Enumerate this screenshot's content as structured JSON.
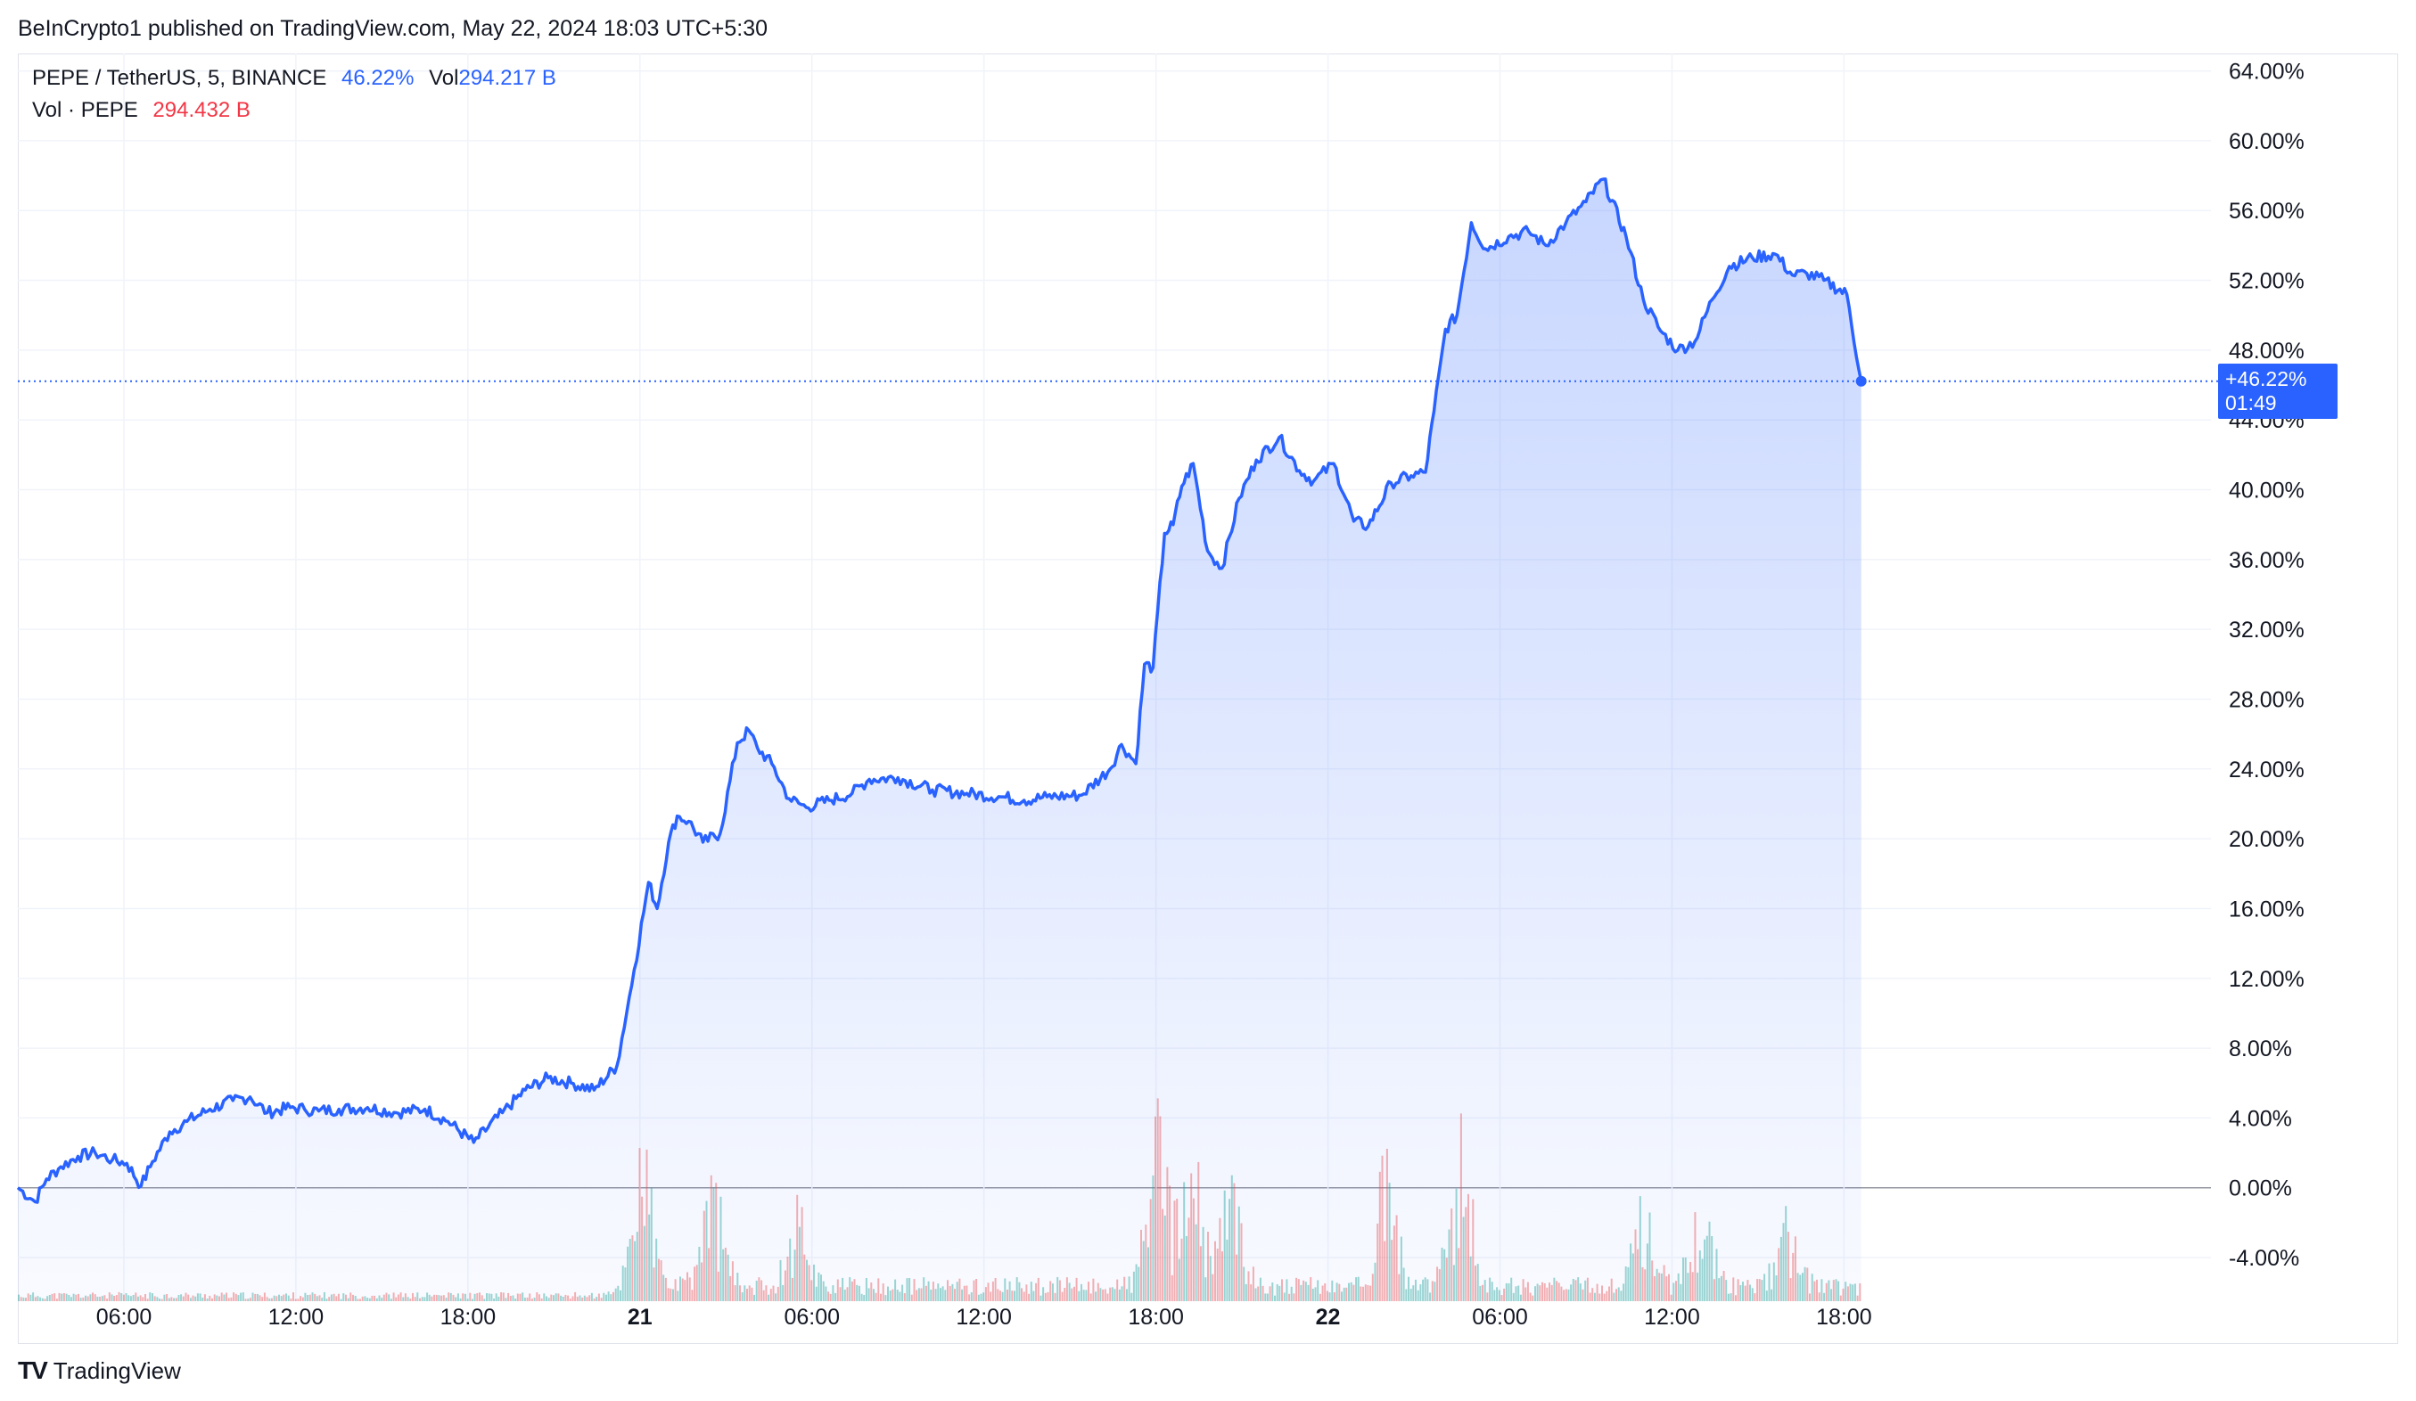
{
  "header": {
    "published_line": "BeInCrypto1 published on TradingView.com, May 22, 2024 18:03 UTC+5:30"
  },
  "legend": {
    "symbol": "PEPE / TetherUS, 5, BINANCE",
    "change": "46.22%",
    "vol_label": "Vol",
    "vol_value": "294.217 B",
    "vol_row_label": "Vol · PEPE",
    "vol_row_value": "294.432 B"
  },
  "price_tag": {
    "value": "+46.22%",
    "countdown": "01:49"
  },
  "brand": {
    "logo": "TV",
    "name": "TradingView"
  },
  "colors": {
    "line": "#2962ff",
    "area_top": "#2962ff",
    "volume_up": "#26a69a",
    "volume_down": "#ef5350",
    "grid": "#f0f3fa",
    "zero_line": "#9598a1"
  },
  "chart_data": {
    "type": "area",
    "y_unit": "%",
    "ylim": [
      -6.5,
      65
    ],
    "y_ticks": [
      "64.00%",
      "60.00%",
      "56.00%",
      "52.00%",
      "48.00%",
      "44.00%",
      "40.00%",
      "36.00%",
      "32.00%",
      "28.00%",
      "24.00%",
      "20.00%",
      "16.00%",
      "12.00%",
      "8.00%",
      "4.00%",
      "0.00%",
      "-4.00%"
    ],
    "x_ticks": [
      "06:00",
      "12:00",
      "18:00",
      "21",
      "06:00",
      "12:00",
      "18:00",
      "22",
      "06:00",
      "12:00",
      "18:00"
    ],
    "x_tick_hours": [
      6,
      12,
      18,
      24,
      30,
      36,
      42,
      48,
      54,
      60,
      66
    ],
    "xlim_hours": [
      2.3,
      78.8
    ],
    "last_value": 46.22,
    "series": [
      {
        "x_hours": [
          2.3,
          2.9,
          3.3,
          3.8,
          4.4,
          5.0,
          5.6,
          6.1,
          6.6,
          7.0,
          7.6,
          8.2,
          9.0,
          9.8,
          10.4,
          11.0,
          11.8,
          12.3,
          12.8,
          13.5,
          14.5,
          15.5,
          16.5,
          17.3,
          18.2,
          19.2,
          20.0,
          20.8,
          21.6,
          22.4,
          23.2,
          23.8,
          24.3,
          24.6,
          25.0,
          25.3,
          25.7,
          26.2,
          26.8,
          27.4,
          27.8,
          28.1,
          28.6,
          29.2,
          29.8,
          30.6,
          31.4,
          32.0,
          33.0,
          34.2,
          35.4,
          36.6,
          37.4,
          38.2,
          39.4,
          40.4,
          40.8,
          41.3,
          41.6,
          41.9,
          42.3,
          42.6,
          42.9,
          43.3,
          43.8,
          44.3,
          44.9,
          45.5,
          46.3,
          47.0,
          47.5,
          48.2,
          48.9,
          49.4,
          50.2,
          50.9,
          51.4,
          51.7,
          52.1,
          52.5,
          53.0,
          53.5,
          54.3,
          55.0,
          55.6,
          56.3,
          57.0,
          57.6,
          58.4,
          59.0,
          59.6,
          60.2,
          60.8,
          61.4,
          62.0,
          62.8,
          63.6,
          64.2,
          64.7,
          65.3,
          66.1,
          66.6
        ],
        "values": [
          0.0,
          -0.8,
          0.5,
          1.2,
          1.8,
          2.0,
          1.6,
          1.4,
          0.1,
          1.5,
          3.2,
          3.8,
          4.5,
          5.0,
          5.2,
          4.3,
          4.6,
          4.5,
          4.4,
          4.5,
          4.6,
          4.3,
          4.5,
          3.8,
          2.6,
          4.3,
          5.6,
          6.3,
          6.0,
          5.6,
          7.0,
          12.5,
          17.5,
          16.0,
          19.8,
          21.3,
          21.0,
          19.8,
          20.3,
          25.5,
          26.2,
          25.2,
          24.3,
          22.3,
          21.8,
          22.2,
          22.6,
          23.4,
          23.5,
          22.8,
          22.6,
          22.4,
          22.2,
          22.4,
          22.5,
          24.0,
          25.4,
          24.3,
          30.0,
          29.8,
          37.5,
          38.0,
          40.2,
          41.5,
          36.5,
          35.5,
          39.5,
          41.7,
          43.0,
          41.1,
          40.5,
          41.5,
          38.2,
          37.9,
          40.4,
          40.8,
          41.0,
          44.5,
          49.2,
          50.0,
          55.3,
          53.8,
          54.5,
          54.8,
          54.0,
          55.3,
          56.5,
          57.8,
          54.5,
          50.9,
          49.1,
          48.0,
          48.5,
          50.9,
          52.8,
          53.3,
          53.5,
          52.3,
          52.4,
          52.0,
          51.2,
          46.2
        ]
      }
    ]
  }
}
